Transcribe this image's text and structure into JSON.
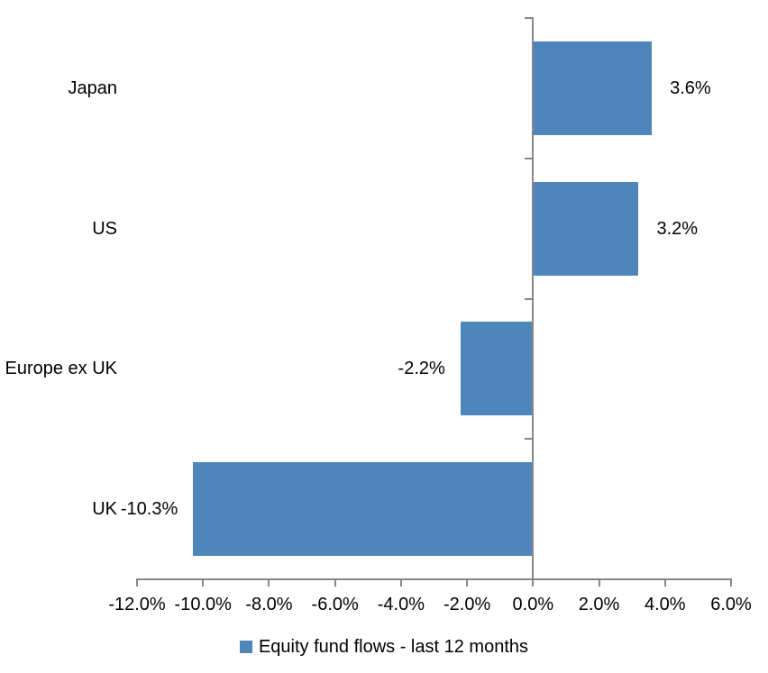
{
  "chart_data": {
    "type": "bar",
    "orientation": "horizontal",
    "categories": [
      "Japan",
      "US",
      "Europe ex UK",
      "UK"
    ],
    "series": [
      {
        "name": "Equity fund flows - last 12 months",
        "values": [
          3.6,
          3.2,
          -2.2,
          -10.3
        ],
        "labels": [
          "3.6%",
          "3.2%",
          "-2.2%",
          "-10.3%"
        ],
        "color": "#4E86BC"
      }
    ],
    "xlim": [
      -12,
      6
    ],
    "x_ticks": [
      -12,
      -10,
      -8,
      -6,
      -4,
      -2,
      0,
      2,
      4,
      6
    ],
    "x_tick_labels": [
      "-12.0%",
      "-10.0%",
      "-8.0%",
      "-6.0%",
      "-4.0%",
      "-2.0%",
      "0.0%",
      "2.0%",
      "4.0%",
      "6.0%"
    ],
    "grid": false,
    "legend_position": "bottom",
    "axis_color": "#878787",
    "background": "#FFFFFF",
    "text_color": "#000000"
  }
}
